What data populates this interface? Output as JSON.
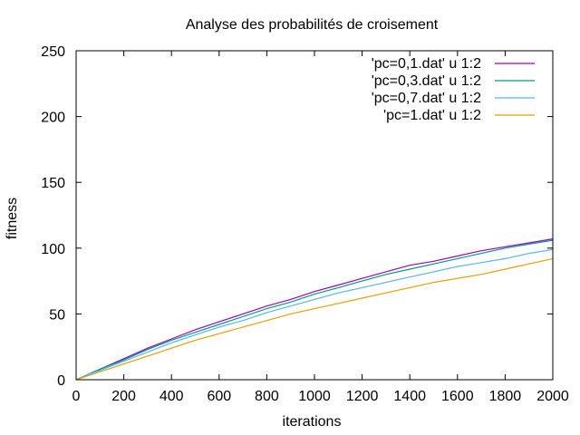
{
  "chart_data": {
    "type": "line",
    "title": "Analyse des probabilités de croisement",
    "xlabel": "iterations",
    "ylabel": "fitness",
    "xlim": [
      0,
      2000
    ],
    "ylim": [
      0,
      250
    ],
    "xticks": [
      0,
      200,
      400,
      600,
      800,
      1000,
      1200,
      1400,
      1600,
      1800,
      2000
    ],
    "yticks": [
      0,
      50,
      100,
      150,
      200,
      250
    ],
    "grid": false,
    "legend_position": "top-right",
    "series": [
      {
        "name": "'pc=0,1.dat' u 1:2",
        "color": "#9400d3",
        "x": [
          0,
          50,
          100,
          200,
          300,
          400,
          500,
          600,
          700,
          800,
          900,
          1000,
          1100,
          1200,
          1300,
          1400,
          1500,
          1600,
          1700,
          1800,
          1900,
          2000
        ],
        "y": [
          0,
          4,
          8,
          16,
          24,
          31,
          38,
          44,
          50,
          56,
          61,
          67,
          72,
          77,
          82,
          87,
          90,
          94,
          98,
          101,
          104,
          107
        ]
      },
      {
        "name": "'pc=0,3.dat' u 1:2",
        "color": "#009e73",
        "x": [
          0,
          50,
          100,
          200,
          300,
          400,
          500,
          600,
          700,
          800,
          900,
          1000,
          1100,
          1200,
          1300,
          1400,
          1500,
          1600,
          1700,
          1800,
          1900,
          2000
        ],
        "y": [
          0,
          4,
          8,
          15,
          23,
          30,
          36,
          42,
          48,
          54,
          59,
          65,
          70,
          75,
          80,
          84,
          88,
          92,
          96,
          100,
          103,
          106
        ]
      },
      {
        "name": "'pc=0,7.dat'  u 1:2",
        "color": "#56b4e9",
        "x": [
          0,
          50,
          100,
          200,
          300,
          400,
          500,
          600,
          700,
          800,
          900,
          1000,
          1100,
          1200,
          1300,
          1400,
          1500,
          1600,
          1700,
          1800,
          1900,
          2000
        ],
        "y": [
          0,
          4,
          7,
          14,
          21,
          28,
          34,
          40,
          45,
          51,
          56,
          61,
          66,
          70,
          74,
          78,
          82,
          86,
          89,
          92,
          96,
          99
        ]
      },
      {
        "name": "'pc=1.dat' u 1:2",
        "color": "#e69f00",
        "x": [
          0,
          50,
          100,
          200,
          300,
          400,
          500,
          600,
          700,
          800,
          900,
          1000,
          1100,
          1200,
          1300,
          1400,
          1500,
          1600,
          1700,
          1800,
          1900,
          2000
        ],
        "y": [
          0,
          3,
          6,
          12,
          18,
          24,
          30,
          35,
          40,
          45,
          50,
          54,
          58,
          62,
          66,
          70,
          74,
          77,
          80,
          84,
          88,
          92
        ]
      }
    ]
  }
}
